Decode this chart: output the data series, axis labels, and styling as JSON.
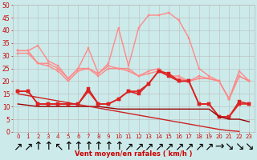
{
  "background_color": "#cceaea",
  "grid_color": "#bbbbbb",
  "xlabel": "Vent moyen/en rafales ( km/h )",
  "xlim_min": -0.5,
  "xlim_max": 23.5,
  "ylim_min": 0,
  "ylim_max": 50,
  "yticks": [
    0,
    5,
    10,
    15,
    20,
    25,
    30,
    35,
    40,
    45,
    50
  ],
  "xticks": [
    0,
    1,
    2,
    3,
    4,
    5,
    6,
    7,
    8,
    9,
    10,
    11,
    12,
    13,
    14,
    15,
    16,
    17,
    18,
    19,
    20,
    21,
    22,
    23
  ],
  "wind_arrows": [
    "↗",
    "↗",
    "↑",
    "↑",
    "↖",
    "↑",
    "↑",
    "↑",
    "↑",
    "↑",
    "↑",
    "↗",
    "↗",
    "↗",
    "↗",
    "↗",
    "↗",
    "↗",
    "↗",
    "↗",
    "→",
    "↘",
    "↘",
    "↘"
  ],
  "series": [
    {
      "name": "rafales_high",
      "color": "#ff8888",
      "linewidth": 1.0,
      "marker": "s",
      "markersize": 2.0,
      "linestyle": "-",
      "y": [
        32,
        32,
        34,
        28,
        26,
        21,
        25,
        33,
        23,
        27,
        41,
        26,
        41,
        46,
        46,
        47,
        44,
        37,
        25,
        22,
        20,
        13,
        24,
        20
      ]
    },
    {
      "name": "rafales_mid1",
      "color": "#ff8888",
      "linewidth": 1.0,
      "marker": "s",
      "markersize": 2.0,
      "linestyle": "-",
      "y": [
        32,
        32,
        27,
        27,
        25,
        21,
        25,
        25,
        23,
        26,
        25,
        25,
        22,
        24,
        25,
        22,
        22,
        20,
        22,
        21,
        20,
        13,
        22,
        20
      ]
    },
    {
      "name": "rafales_mid2",
      "color": "#ff8888",
      "linewidth": 1.0,
      "marker": "s",
      "markersize": 2.0,
      "linestyle": "-",
      "y": [
        31,
        31,
        27,
        26,
        24,
        20,
        24,
        25,
        22,
        25,
        25,
        24,
        22,
        23,
        24,
        22,
        21,
        20,
        21,
        21,
        20,
        13,
        22,
        20
      ]
    },
    {
      "name": "vent_moyen_main",
      "color": "#dd2222",
      "linewidth": 1.2,
      "marker": "s",
      "markersize": 2.5,
      "linestyle": "-",
      "y": [
        16,
        16,
        11,
        11,
        11,
        11,
        11,
        17,
        11,
        11,
        13,
        16,
        16,
        19,
        24,
        23,
        20,
        20,
        11,
        11,
        6,
        6,
        12,
        11
      ]
    },
    {
      "name": "vent_moyen_2",
      "color": "#dd2222",
      "linewidth": 1.2,
      "marker": "s",
      "markersize": 2.5,
      "linestyle": "-",
      "y": [
        16,
        16,
        11,
        11,
        11,
        11,
        11,
        16,
        11,
        11,
        13,
        16,
        15,
        19,
        24,
        22,
        20,
        20,
        11,
        11,
        6,
        6,
        11,
        11
      ]
    },
    {
      "name": "trend_dark",
      "color": "#990000",
      "linewidth": 1.0,
      "marker": null,
      "markersize": 0,
      "linestyle": "-",
      "y": [
        11,
        10.5,
        10,
        10,
        10,
        10,
        10,
        10,
        10,
        9.5,
        9,
        9,
        9,
        9,
        9,
        9,
        9,
        9,
        9,
        9,
        6,
        5,
        5,
        4
      ]
    },
    {
      "name": "trend_decline",
      "color": "#cc2222",
      "linewidth": 1.0,
      "marker": null,
      "markersize": 0,
      "linestyle": "-",
      "y": [
        15,
        14.3,
        13.6,
        12.9,
        12.2,
        11.5,
        10.8,
        10.1,
        9.4,
        8.7,
        8.0,
        7.3,
        6.6,
        5.9,
        5.2,
        4.5,
        3.8,
        3.1,
        2.4,
        1.7,
        1.0,
        0.5,
        0.2,
        null
      ]
    }
  ]
}
